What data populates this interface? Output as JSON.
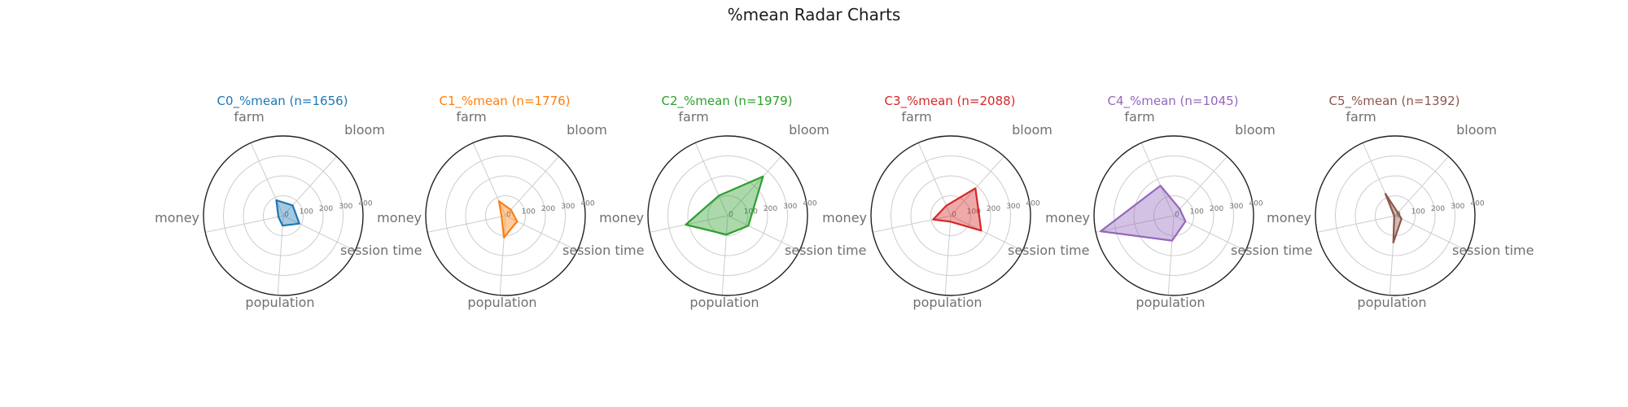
{
  "figure": {
    "title": "%mean Radar Charts"
  },
  "chart_data": [
    {
      "type": "radar",
      "title": "C0_%mean (n=1656)",
      "color": "#1f77b4",
      "axes": [
        "bloom",
        "farm",
        "money",
        "population",
        "session time"
      ],
      "values": [
        70,
        85,
        25,
        50,
        90
      ],
      "rlim": [
        0,
        400
      ],
      "rticks": [
        "0",
        "100",
        "200",
        "300",
        "400"
      ],
      "grid": true
    },
    {
      "type": "radar",
      "title": "C1_%mean (n=1776)",
      "color": "#ff7f0e",
      "axes": [
        "bloom",
        "farm",
        "money",
        "population",
        "session time"
      ],
      "values": [
        40,
        80,
        20,
        110,
        65
      ],
      "rlim": [
        0,
        400
      ],
      "rticks": [
        "0",
        "100",
        "200",
        "300",
        "400"
      ],
      "grid": true
    },
    {
      "type": "radar",
      "title": "C2_%mean (n=1979)",
      "color": "#2ca02c",
      "axes": [
        "bloom",
        "farm",
        "money",
        "population",
        "session time"
      ],
      "values": [
        265,
        110,
        215,
        95,
        115
      ],
      "rlim": [
        0,
        400
      ],
      "rticks": [
        "0",
        "100",
        "200",
        "300",
        "400"
      ],
      "grid": true
    },
    {
      "type": "radar",
      "title": "C3_%mean (n=2088)",
      "color": "#d62728",
      "axes": [
        "bloom",
        "farm",
        "money",
        "population",
        "session time"
      ],
      "values": [
        185,
        55,
        90,
        30,
        170
      ],
      "rlim": [
        0,
        400
      ],
      "rticks": [
        "0",
        "100",
        "200",
        "300",
        "400"
      ],
      "grid": true
    },
    {
      "type": "radar",
      "title": "C4_%mean (n=1045)",
      "color": "#9467bd",
      "axes": [
        "bloom",
        "farm",
        "money",
        "population",
        "session time"
      ],
      "values": [
        45,
        165,
        375,
        125,
        65
      ],
      "rlim": [
        0,
        400
      ],
      "rticks": [
        "0",
        "100",
        "200",
        "300",
        "400"
      ],
      "grid": true
    },
    {
      "type": "radar",
      "title": "C5_%mean (n=1392)",
      "color": "#8c564b",
      "axes": [
        "bloom",
        "farm",
        "money",
        "population",
        "session time"
      ],
      "values": [
        20,
        120,
        5,
        135,
        35
      ],
      "rlim": [
        0,
        400
      ],
      "rticks": [
        "0",
        "100",
        "200",
        "300",
        "400"
      ],
      "grid": true
    }
  ]
}
